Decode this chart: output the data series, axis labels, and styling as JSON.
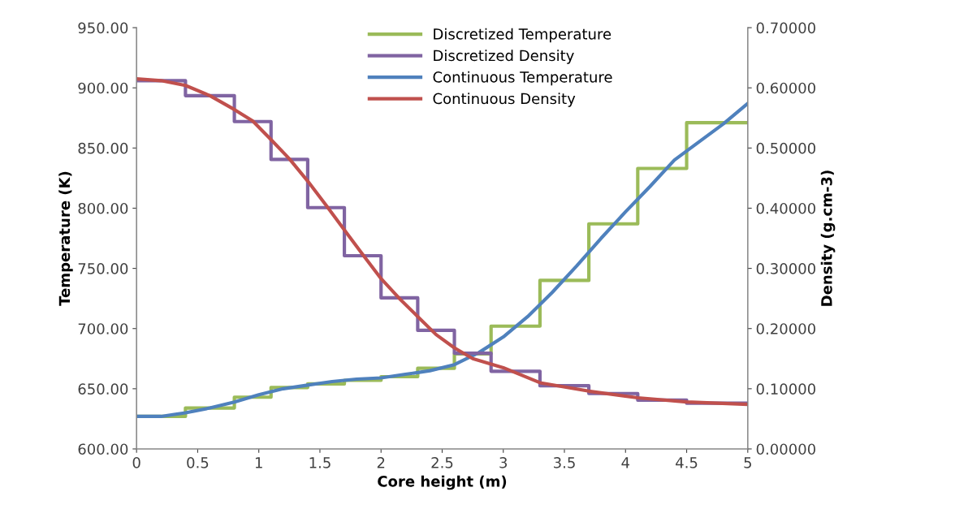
{
  "chart_data": {
    "type": "line",
    "xlabel": "Core height (m)",
    "ylabel": "Temperature (K)",
    "y2label": "Density (g.cm-3)",
    "xlim": [
      0,
      5
    ],
    "xticks": [
      0,
      0.5,
      1,
      1.5,
      2,
      2.5,
      3,
      3.5,
      4,
      4.5,
      5
    ],
    "ylim": [
      600,
      950
    ],
    "yticks": [
      {
        "value": 600,
        "label": "600.00"
      },
      {
        "value": 650,
        "label": "650.00"
      },
      {
        "value": 700,
        "label": "700.00"
      },
      {
        "value": 750,
        "label": "750.00"
      },
      {
        "value": 800,
        "label": "800.00"
      },
      {
        "value": 850,
        "label": "850.00"
      },
      {
        "value": 900,
        "label": "900.00"
      },
      {
        "value": 950,
        "label": "950.00"
      }
    ],
    "y2lim": [
      0,
      0.7
    ],
    "y2ticks": [
      {
        "value": 0,
        "label": "0.00000"
      },
      {
        "value": 0.1,
        "label": "0.10000"
      },
      {
        "value": 0.2,
        "label": "0.20000"
      },
      {
        "value": 0.3,
        "label": "0.30000"
      },
      {
        "value": 0.4,
        "label": "0.40000"
      },
      {
        "value": 0.5,
        "label": "0.50000"
      },
      {
        "value": 0.6,
        "label": "0.60000"
      },
      {
        "value": 0.7,
        "label": "0.70000"
      }
    ],
    "grid": false,
    "legend": "top",
    "marker": "none",
    "line_style": "solid",
    "series": [
      {
        "name": "Discretized Temperature",
        "type": "step",
        "color": "#9bbb59",
        "x": [
          0,
          0.4,
          0.8,
          1.1,
          1.4,
          1.7,
          2.0,
          2.3,
          2.6,
          2.9,
          3.3,
          3.7,
          4.1,
          4.5,
          5
        ],
        "values": [
          627,
          634,
          643,
          651,
          654,
          657,
          660,
          667,
          679,
          702,
          740,
          787,
          833,
          871,
          871
        ]
      },
      {
        "name": "Discretized Density",
        "type": "step",
        "axis": "y2",
        "color": "#8064a2",
        "x": [
          0,
          0.4,
          0.8,
          1.1,
          1.4,
          1.7,
          2.0,
          2.3,
          2.6,
          2.9,
          3.3,
          3.7,
          4.1,
          4.5,
          5
        ],
        "values": [
          0.612,
          0.587,
          0.544,
          0.481,
          0.401,
          0.321,
          0.251,
          0.197,
          0.159,
          0.129,
          0.105,
          0.092,
          0.081,
          0.076,
          0.076
        ]
      },
      {
        "name": "Continuous Temperature",
        "color": "#4f81bd",
        "x": [
          0,
          0.2,
          0.4,
          0.6,
          0.8,
          1.0,
          1.2,
          1.4,
          1.6,
          1.8,
          2.0,
          2.2,
          2.4,
          2.6,
          2.8,
          3.0,
          3.2,
          3.4,
          3.6,
          3.8,
          4.0,
          4.2,
          4.4,
          4.6,
          4.8,
          5.0
        ],
        "values": [
          627,
          627,
          630,
          634,
          639,
          645,
          650,
          653,
          656,
          658,
          659,
          662,
          665,
          670,
          680,
          693,
          710,
          730,
          752,
          775,
          797,
          818,
          840,
          855,
          870,
          887
        ]
      },
      {
        "name": "Continuous Density",
        "axis": "y2",
        "color": "#c0504d",
        "x": [
          0,
          0.2,
          0.4,
          0.6,
          0.8,
          0.95,
          1.1,
          1.25,
          1.4,
          1.55,
          1.7,
          1.85,
          2.0,
          2.15,
          2.3,
          2.45,
          2.6,
          2.75,
          3.0,
          3.3,
          3.7,
          4.1,
          4.5,
          5.0
        ],
        "values": [
          0.615,
          0.612,
          0.604,
          0.587,
          0.564,
          0.545,
          0.514,
          0.482,
          0.445,
          0.405,
          0.364,
          0.323,
          0.283,
          0.25,
          0.22,
          0.19,
          0.168,
          0.15,
          0.135,
          0.11,
          0.096,
          0.085,
          0.078,
          0.074
        ]
      }
    ]
  }
}
